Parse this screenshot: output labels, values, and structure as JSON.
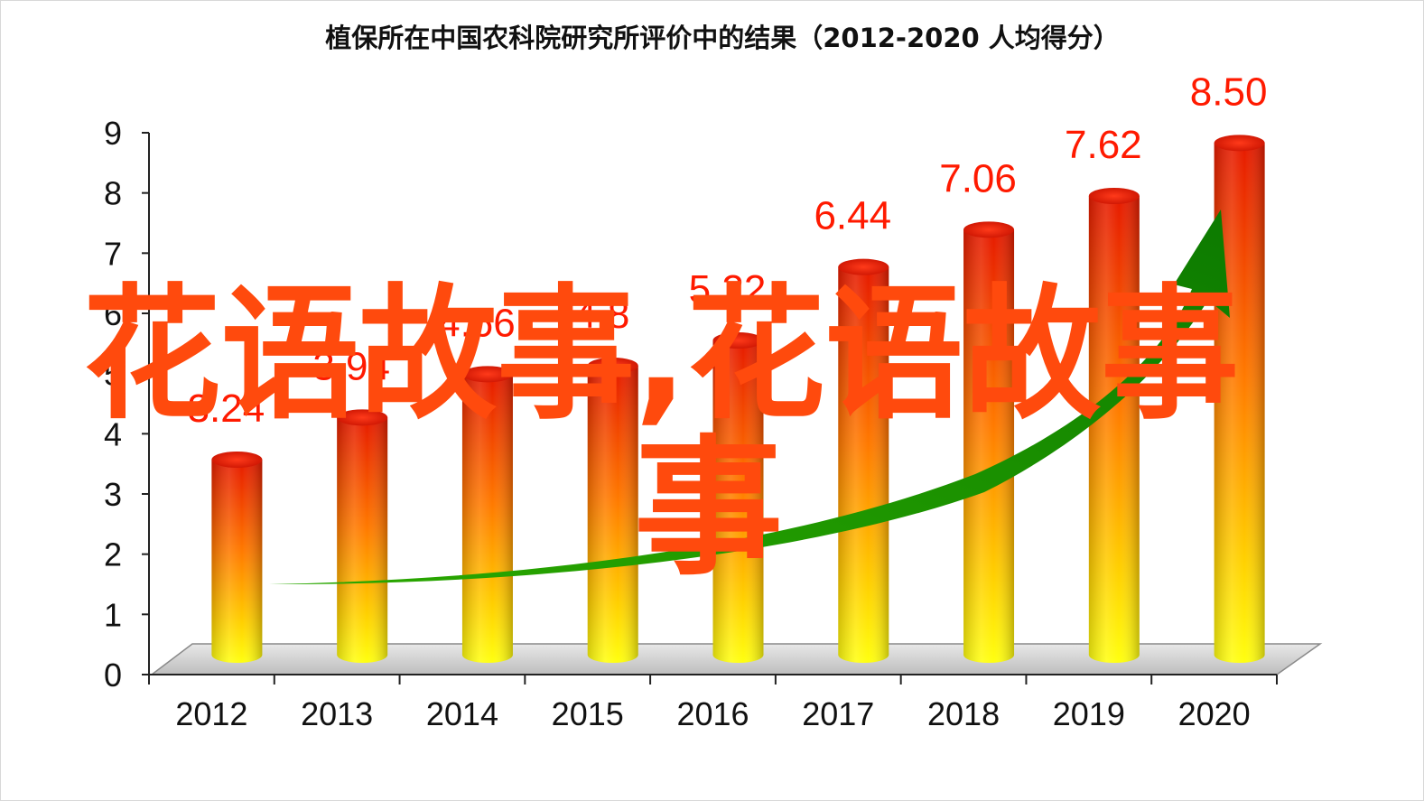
{
  "chart_data": {
    "type": "bar",
    "title": "植保所在中国农科院研究所评价中的结果（2012-2020  人均得分）",
    "categories": [
      "2012",
      "2013",
      "2014",
      "2015",
      "2016",
      "2017",
      "2018",
      "2019",
      "2020"
    ],
    "values": [
      3.24,
      3.94,
      4.66,
      4.8,
      5.22,
      6.44,
      7.06,
      7.62,
      8.5
    ],
    "data_labels": [
      "3.24",
      "3.94",
      "4.66",
      "4.8",
      "5.22",
      "6.44",
      "7.06",
      "7.62",
      "8.50"
    ],
    "yticks": [
      "0",
      "1",
      "2",
      "3",
      "4",
      "5",
      "6",
      "7",
      "8",
      "9"
    ],
    "ylim": [
      0,
      9
    ],
    "xlabel": "",
    "ylabel": "",
    "grid": false,
    "style": "3d-cylinder",
    "colors": {
      "bar_top": "#e81c00",
      "bar_mid": "#ff8c00",
      "bar_bottom": "#ffff00",
      "trend_arrow": "#1a9a00",
      "label": "#ff1a00"
    }
  },
  "watermark": {
    "line1": "花语故事,花语故事",
    "line2": "事"
  }
}
